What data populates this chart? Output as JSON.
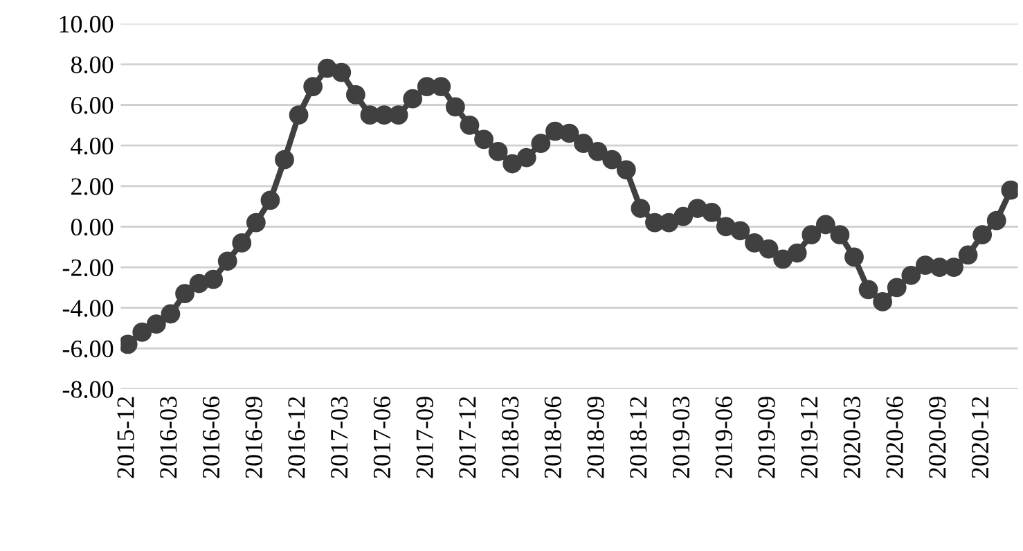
{
  "chart_data": {
    "type": "line",
    "categories": [
      "2015-12",
      null,
      null,
      "2016-03",
      null,
      null,
      "2016-06",
      null,
      null,
      "2016-09",
      null,
      null,
      "2016-12",
      null,
      null,
      "2017-03",
      null,
      null,
      "2017-06",
      null,
      null,
      "2017-09",
      null,
      null,
      "2017-12",
      null,
      null,
      "2018-03",
      null,
      null,
      "2018-06",
      null,
      null,
      "2018-09",
      null,
      null,
      "2018-12",
      null,
      null,
      "2019-03",
      null,
      null,
      "2019-06",
      null,
      null,
      "2019-09",
      null,
      null,
      "2019-12",
      null,
      null,
      "2020-03",
      null,
      null,
      "2020-06",
      null,
      null,
      "2020-09",
      null,
      null,
      "2020-12",
      null,
      null
    ],
    "series": [
      {
        "color": "#404040",
        "values": [
          -5.8,
          -5.2,
          -4.8,
          -4.3,
          -3.3,
          -2.8,
          -2.6,
          -1.7,
          -0.8,
          0.2,
          1.3,
          3.3,
          5.5,
          6.9,
          7.8,
          7.6,
          6.5,
          5.5,
          5.5,
          5.5,
          6.3,
          6.9,
          6.9,
          5.9,
          5.0,
          4.3,
          3.7,
          3.1,
          3.4,
          4.1,
          4.7,
          4.6,
          4.1,
          3.7,
          3.3,
          2.8,
          0.9,
          0.2,
          0.2,
          0.5,
          0.9,
          0.7,
          0.0,
          -0.2,
          -0.8,
          -1.1,
          -1.6,
          -1.3,
          -0.4,
          0.1,
          -0.4,
          -1.5,
          -3.1,
          -3.7,
          -3.0,
          -2.4,
          -1.9,
          -2.0,
          -2.0,
          -1.4,
          -0.4,
          0.3,
          1.8
        ]
      }
    ],
    "ylim": [
      -8,
      10
    ],
    "yticks": [
      {
        "value": -8,
        "label": "-8.00"
      },
      {
        "value": -6,
        "label": "-6.00"
      },
      {
        "value": -4,
        "label": "-4.00"
      },
      {
        "value": -2,
        "label": "-2.00"
      },
      {
        "value": 0,
        "label": "0.00"
      },
      {
        "value": 2,
        "label": "2.00"
      },
      {
        "value": 4,
        "label": "4.00"
      },
      {
        "value": 6,
        "label": "6.00"
      },
      {
        "value": 8,
        "label": "8.00"
      },
      {
        "value": 10,
        "label": "10.00"
      }
    ],
    "grid": "y",
    "marker": "circle",
    "line_style": "solid"
  }
}
